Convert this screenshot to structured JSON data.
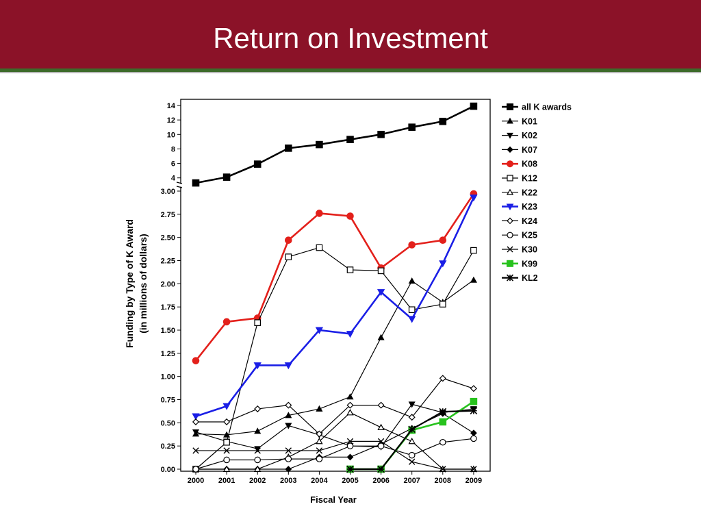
{
  "slide": {
    "title": "Return on Investment"
  },
  "colors": {
    "title_bar": "#8b1228",
    "rule_green": "#3c6a2a",
    "K08": "#e3201b",
    "K23": "#1a1ee6",
    "K99": "#27c21d",
    "default": "#000000"
  },
  "chart_data": {
    "type": "line",
    "xlabel": "Fiscal Year",
    "ylabel_line1": "Funding by Type of K Award",
    "ylabel_line2": "(in millions of dollars)",
    "categories": [
      "2000",
      "2001",
      "2002",
      "2003",
      "2004",
      "2005",
      "2006",
      "2007",
      "2008",
      "2009"
    ],
    "upper_axis": {
      "ylim": [
        3.5,
        14
      ],
      "ticks": [
        "4",
        "6",
        "8",
        "10",
        "12",
        "14"
      ]
    },
    "lower_axis": {
      "ylim": [
        0,
        3
      ],
      "ticks": [
        "0.00",
        "0.25",
        "0.50",
        "0.75",
        "1.00",
        "1.25",
        "1.50",
        "1.75",
        "2.00",
        "2.25",
        "2.50",
        "2.75",
        "3.00"
      ]
    },
    "series": [
      {
        "name": "all K awards",
        "marker": "square-filled",
        "color": "#000000",
        "width": 2.6,
        "axis": "upper",
        "values": [
          3.3,
          4.1,
          5.9,
          8.1,
          8.6,
          9.3,
          10.0,
          11.0,
          11.8,
          13.9
        ]
      },
      {
        "name": "K01",
        "marker": "triangle-up-filled",
        "color": "#000000",
        "width": 1.2,
        "axis": "lower",
        "values": [
          0.38,
          0.37,
          0.41,
          0.58,
          0.65,
          0.78,
          1.42,
          2.03,
          1.8,
          2.04
        ]
      },
      {
        "name": "K02",
        "marker": "triangle-down-filled",
        "color": "#000000",
        "width": 1.2,
        "axis": "lower",
        "values": [
          0.4,
          0.3,
          0.22,
          0.47,
          0.37,
          0.25,
          0.24,
          0.7,
          0.61,
          0.65
        ]
      },
      {
        "name": "K07",
        "marker": "diamond-filled",
        "color": "#000000",
        "width": 1.2,
        "axis": "lower",
        "values": [
          0.0,
          0.0,
          0.0,
          0.0,
          0.13,
          0.13,
          0.27,
          0.44,
          0.6,
          0.39
        ]
      },
      {
        "name": "K08",
        "marker": "circle-filled",
        "color": "#e3201b",
        "width": 2.6,
        "axis": "lower",
        "values": [
          1.17,
          1.59,
          1.63,
          2.47,
          2.76,
          2.73,
          2.17,
          2.42,
          2.47,
          2.97
        ]
      },
      {
        "name": "K12",
        "marker": "square-open",
        "color": "#000000",
        "width": 1.2,
        "axis": "lower",
        "values": [
          0.0,
          0.29,
          1.58,
          2.29,
          2.39,
          2.15,
          2.14,
          1.72,
          1.78,
          2.36
        ]
      },
      {
        "name": "K22",
        "marker": "triangle-up-open",
        "color": "#000000",
        "width": 1.2,
        "axis": "lower",
        "values": [
          0.0,
          0.0,
          0.0,
          0.13,
          0.3,
          0.61,
          0.45,
          0.3,
          0.0,
          0.0
        ]
      },
      {
        "name": "K23",
        "marker": "triangle-down-filled",
        "color": "#1a1ee6",
        "width": 2.6,
        "axis": "lower",
        "values": [
          0.57,
          0.68,
          1.12,
          1.12,
          1.5,
          1.46,
          1.91,
          1.62,
          2.22,
          2.93
        ]
      },
      {
        "name": "K24",
        "marker": "diamond-open",
        "color": "#000000",
        "width": 1.2,
        "axis": "lower",
        "values": [
          0.51,
          0.51,
          0.65,
          0.69,
          0.38,
          0.69,
          0.69,
          0.56,
          0.98,
          0.87
        ]
      },
      {
        "name": "K25",
        "marker": "circle-open",
        "color": "#000000",
        "width": 1.2,
        "axis": "lower",
        "values": [
          0.0,
          0.1,
          0.1,
          0.11,
          0.11,
          0.25,
          0.25,
          0.15,
          0.29,
          0.33
        ]
      },
      {
        "name": "K30",
        "marker": "x",
        "color": "#000000",
        "width": 1.2,
        "axis": "lower",
        "values": [
          0.2,
          0.2,
          0.2,
          0.2,
          0.2,
          0.3,
          0.3,
          0.08,
          0.0,
          0.0
        ]
      },
      {
        "name": "K99",
        "marker": "square-filled",
        "color": "#27c21d",
        "width": 2.6,
        "axis": "lower",
        "values": [
          null,
          null,
          null,
          null,
          null,
          0.0,
          0.0,
          0.42,
          0.51,
          0.73
        ]
      },
      {
        "name": "KL2",
        "marker": "asterisk",
        "color": "#000000",
        "width": 2.2,
        "axis": "lower",
        "values": [
          null,
          null,
          null,
          null,
          null,
          0.0,
          0.0,
          0.43,
          0.62,
          0.63
        ]
      }
    ]
  }
}
